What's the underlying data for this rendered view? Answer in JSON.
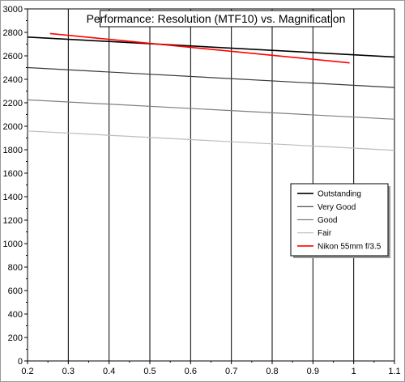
{
  "chart_data": {
    "type": "line",
    "title": "Performance: Resolution (MTF10) vs. Magnification",
    "xlabel": "",
    "ylabel": "",
    "xlim": [
      0.2,
      1.1
    ],
    "ylim": [
      0,
      3000
    ],
    "x_ticks": [
      0.2,
      0.3,
      0.4,
      0.5,
      0.6,
      0.7,
      0.8,
      0.9,
      1,
      1.1
    ],
    "x_tick_labels": [
      "0.2",
      "0.3",
      "0.4",
      "0.5",
      "0.6",
      "0.7",
      "0.8",
      "0.9",
      "1",
      "1.1"
    ],
    "y_ticks": [
      0,
      200,
      400,
      600,
      800,
      1000,
      1200,
      1400,
      1600,
      1800,
      2000,
      2200,
      2400,
      2600,
      2800,
      3000
    ],
    "y_tick_labels": [
      "0",
      "200",
      "400",
      "600",
      "800",
      "1000",
      "1200",
      "1400",
      "1600",
      "1800",
      "2000",
      "2200",
      "2400",
      "2600",
      "2800",
      "3000"
    ],
    "grid": "vertical-only",
    "legend_position": "right",
    "series": [
      {
        "name": "Outstanding",
        "color": "#000000",
        "width": 1.6,
        "x": [
          0.2,
          1.1
        ],
        "y": [
          2760,
          2590
        ]
      },
      {
        "name": "Very Good",
        "color": "#3a3a3a",
        "width": 1.2,
        "x": [
          0.2,
          1.1
        ],
        "y": [
          2500,
          2330
        ]
      },
      {
        "name": "Good",
        "color": "#7f7f7f",
        "width": 1.2,
        "x": [
          0.2,
          1.1
        ],
        "y": [
          2225,
          2060
        ]
      },
      {
        "name": "Fair",
        "color": "#bcbcbc",
        "width": 1.2,
        "x": [
          0.2,
          1.1
        ],
        "y": [
          1960,
          1795
        ]
      },
      {
        "name": "Nikon 55mm f/3.5",
        "color": "#ff0000",
        "width": 1.6,
        "x": [
          0.255,
          0.99
        ],
        "y": [
          2790,
          2540
        ]
      }
    ]
  }
}
